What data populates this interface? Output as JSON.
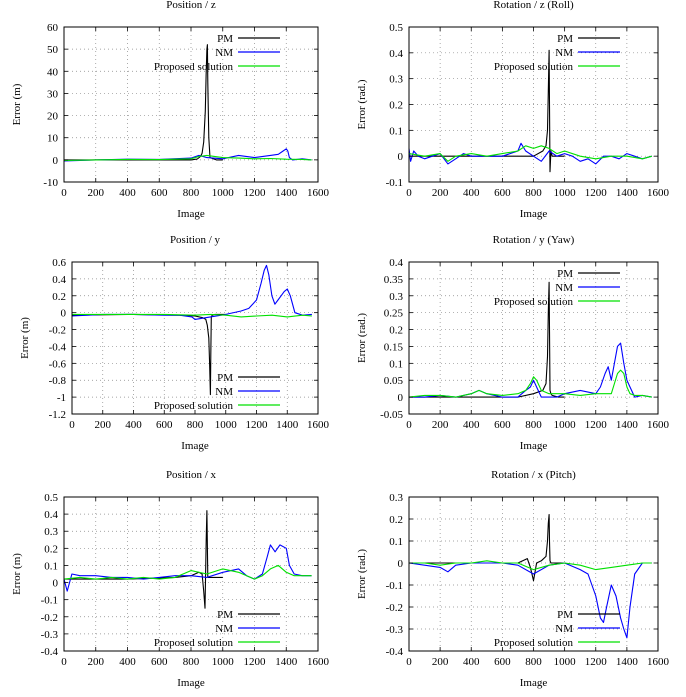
{
  "figure": {
    "layout": "3 rows x 2 columns"
  },
  "chart_data": [
    {
      "type": "line",
      "title": "Position / z",
      "xlabel": "Image",
      "ylabel": "Error (m)",
      "xlim": [
        0,
        1600
      ],
      "ylim": [
        -10,
        60
      ],
      "xticks": [
        0,
        200,
        400,
        600,
        800,
        1000,
        1200,
        1400,
        1600
      ],
      "yticks": [
        -10,
        0,
        10,
        20,
        30,
        40,
        50,
        60
      ],
      "grid": true,
      "legend_position": "top-right",
      "series": [
        {
          "name": "PM",
          "color": "#000000",
          "x": [
            0,
            400,
            800,
            840,
            860,
            870,
            880,
            890,
            895,
            900,
            903,
            906,
            912,
            920,
            960,
            1000
          ],
          "y": [
            0,
            0,
            0,
            0.4,
            1.5,
            3,
            8,
            22,
            38,
            50,
            52,
            35,
            10,
            1,
            0,
            0
          ]
        },
        {
          "name": "NM",
          "color": "#0000ff",
          "x": [
            0,
            200,
            400,
            600,
            800,
            850,
            900,
            1000,
            1100,
            1200,
            1300,
            1350,
            1380,
            1400,
            1410,
            1420,
            1440,
            1500,
            1560
          ],
          "y": [
            -0.5,
            0,
            0.3,
            0.2,
            0.8,
            2,
            1,
            0.5,
            2,
            1,
            2,
            2.5,
            4,
            5,
            4,
            1,
            0,
            0.5,
            0
          ]
        },
        {
          "name": "Proposed solution",
          "color": "#00e000",
          "x": [
            0,
            200,
            400,
            600,
            800,
            850,
            900,
            1000,
            1100,
            1200,
            1300,
            1400,
            1500,
            1560
          ],
          "y": [
            -0.3,
            0,
            0.2,
            0.1,
            0.5,
            1.5,
            2,
            1,
            0.8,
            0.5,
            0.6,
            0.3,
            0.2,
            0
          ]
        }
      ]
    },
    {
      "type": "line",
      "title": "Rotation / z (Roll)",
      "xlabel": "Image",
      "ylabel": "Error (rad.)",
      "xlim": [
        0,
        1600
      ],
      "ylim": [
        -0.1,
        0.5
      ],
      "xticks": [
        0,
        200,
        400,
        600,
        800,
        1000,
        1200,
        1400,
        1600
      ],
      "yticks": [
        -0.1,
        0,
        0.1,
        0.2,
        0.3,
        0.4,
        0.5
      ],
      "grid": true,
      "legend_position": "top-right",
      "series": [
        {
          "name": "PM",
          "color": "#000000",
          "x": [
            0,
            400,
            700,
            800,
            860,
            880,
            890,
            895,
            900,
            903,
            906,
            912,
            920,
            960,
            1000
          ],
          "y": [
            0,
            0,
            0,
            0,
            0.02,
            0.04,
            0.1,
            0.25,
            0.41,
            0.2,
            -0.06,
            0.02,
            0,
            0,
            0
          ]
        },
        {
          "name": "NM",
          "color": "#0000ff",
          "x": [
            0,
            10,
            30,
            60,
            100,
            150,
            200,
            250,
            300,
            350,
            400,
            500,
            600,
            700,
            720,
            750,
            800,
            850,
            900,
            950,
            1000,
            1050,
            1100,
            1150,
            1200,
            1250,
            1300,
            1350,
            1400,
            1450,
            1500,
            1560
          ],
          "y": [
            0.03,
            -0.02,
            0.02,
            0,
            -0.01,
            0,
            0.01,
            -0.03,
            -0.01,
            0.01,
            0,
            0,
            0,
            0.02,
            0.05,
            0.02,
            0,
            -0.02,
            0.02,
            0,
            0.01,
            0,
            -0.02,
            -0.01,
            -0.03,
            0,
            0,
            -0.01,
            0.01,
            0,
            -0.01,
            0
          ]
        },
        {
          "name": "Proposed solution",
          "color": "#00e000",
          "x": [
            0,
            100,
            200,
            250,
            300,
            400,
            500,
            600,
            700,
            750,
            800,
            850,
            900,
            950,
            1000,
            1100,
            1200,
            1300,
            1400,
            1500,
            1560
          ],
          "y": [
            0.01,
            0,
            0.01,
            -0.02,
            0,
            0.01,
            0,
            0.01,
            0.02,
            0.04,
            0.03,
            0.04,
            0.03,
            0.01,
            0.02,
            0,
            -0.01,
            0,
            0,
            -0.01,
            0
          ]
        }
      ]
    },
    {
      "type": "line",
      "title": "Position / y",
      "xlabel": "Image",
      "ylabel": "Error (m)",
      "xlim": [
        0,
        1600
      ],
      "ylim": [
        -1.2,
        0.6
      ],
      "xticks": [
        0,
        200,
        400,
        600,
        800,
        1000,
        1200,
        1400,
        1600
      ],
      "yticks": [
        -1.2,
        -1,
        -0.8,
        -0.6,
        -0.4,
        -0.2,
        0,
        0.2,
        0.4,
        0.6
      ],
      "grid": true,
      "legend_position": "bottom-right",
      "series": [
        {
          "name": "PM",
          "color": "#000000",
          "x": [
            0,
            400,
            700,
            800,
            850,
            870,
            880,
            890,
            895,
            900,
            903,
            906,
            912,
            930,
            1000
          ],
          "y": [
            -0.03,
            -0.02,
            -0.03,
            -0.04,
            -0.06,
            -0.08,
            -0.15,
            -0.3,
            -0.6,
            -0.97,
            -0.5,
            -0.05,
            -0.03,
            -0.02,
            -0.02
          ]
        },
        {
          "name": "NM",
          "color": "#0000ff",
          "x": [
            0,
            200,
            400,
            600,
            700,
            780,
            800,
            900,
            1000,
            1100,
            1150,
            1200,
            1230,
            1250,
            1265,
            1280,
            1300,
            1320,
            1340,
            1360,
            1380,
            1400,
            1420,
            1450,
            1500,
            1560
          ],
          "y": [
            -0.04,
            -0.02,
            -0.02,
            -0.03,
            -0.03,
            -0.05,
            -0.08,
            -0.05,
            -0.02,
            0.02,
            0.05,
            0.15,
            0.35,
            0.5,
            0.56,
            0.45,
            0.2,
            0.1,
            0.15,
            0.2,
            0.25,
            0.28,
            0.2,
            0,
            -0.03,
            -0.02
          ]
        },
        {
          "name": "Proposed solution",
          "color": "#00e000",
          "x": [
            0,
            200,
            400,
            600,
            800,
            900,
            1000,
            1100,
            1200,
            1300,
            1400,
            1500,
            1560
          ],
          "y": [
            -0.02,
            -0.02,
            -0.02,
            -0.02,
            -0.03,
            -0.02,
            -0.03,
            -0.05,
            -0.04,
            -0.03,
            -0.05,
            -0.03,
            -0.04
          ]
        }
      ]
    },
    {
      "type": "line",
      "title": "Rotation / y (Yaw)",
      "xlabel": "Image",
      "ylabel": "Error (rad.)",
      "xlim": [
        0,
        1600
      ],
      "ylim": [
        -0.05,
        0.4
      ],
      "xticks": [
        0,
        200,
        400,
        600,
        800,
        1000,
        1200,
        1400,
        1600
      ],
      "yticks": [
        -0.05,
        0,
        0.05,
        0.1,
        0.15,
        0.2,
        0.25,
        0.3,
        0.35,
        0.4
      ],
      "grid": true,
      "legend_position": "top-right",
      "series": [
        {
          "name": "PM",
          "color": "#000000",
          "x": [
            0,
            400,
            700,
            800,
            860,
            880,
            890,
            895,
            900,
            903,
            906,
            912,
            920,
            960,
            1000
          ],
          "y": [
            0,
            0,
            0,
            0.01,
            0.02,
            0.04,
            0.12,
            0.25,
            0.34,
            0.2,
            0.02,
            0.01,
            0.005,
            0,
            0
          ]
        },
        {
          "name": "NM",
          "color": "#0000ff",
          "x": [
            0,
            100,
            200,
            300,
            400,
            450,
            500,
            600,
            700,
            750,
            780,
            800,
            820,
            850,
            900,
            950,
            1000,
            1100,
            1200,
            1230,
            1260,
            1280,
            1300,
            1320,
            1340,
            1360,
            1380,
            1400,
            1420,
            1450,
            1500,
            1560
          ],
          "y": [
            0,
            0,
            0.005,
            0,
            0.01,
            0.02,
            0.01,
            0,
            0,
            0.02,
            0.03,
            0.05,
            0.03,
            0,
            0,
            0,
            0.01,
            0.02,
            0.01,
            0.03,
            0.07,
            0.09,
            0.05,
            0.1,
            0.15,
            0.16,
            0.1,
            0.05,
            0.03,
            0,
            0.005,
            0
          ]
        },
        {
          "name": "Proposed solution",
          "color": "#00e000",
          "x": [
            0,
            100,
            200,
            300,
            400,
            450,
            500,
            600,
            700,
            750,
            780,
            800,
            820,
            850,
            900,
            1000,
            1100,
            1200,
            1300,
            1320,
            1340,
            1360,
            1380,
            1400,
            1420,
            1450,
            1500,
            1560
          ],
          "y": [
            0,
            0.005,
            0.005,
            0,
            0.01,
            0.02,
            0.01,
            0.005,
            0.01,
            0.02,
            0.04,
            0.06,
            0.05,
            0.02,
            0.01,
            0.01,
            0.005,
            0.01,
            0.01,
            0.04,
            0.07,
            0.08,
            0.07,
            0.03,
            0.01,
            0.005,
            0.005,
            0
          ]
        }
      ]
    },
    {
      "type": "line",
      "title": "Position / x",
      "xlabel": "Image",
      "ylabel": "Error (m)",
      "xlim": [
        0,
        1600
      ],
      "ylim": [
        -0.4,
        0.5
      ],
      "xticks": [
        0,
        200,
        400,
        600,
        800,
        1000,
        1200,
        1400,
        1600
      ],
      "yticks": [
        -0.4,
        -0.3,
        -0.2,
        -0.1,
        0,
        0.1,
        0.2,
        0.3,
        0.4,
        0.5
      ],
      "grid": true,
      "legend_position": "bottom-right",
      "series": [
        {
          "name": "PM",
          "color": "#000000",
          "x": [
            0,
            400,
            700,
            800,
            850,
            870,
            880,
            888,
            892,
            896,
            900,
            903,
            906,
            912,
            930,
            1000
          ],
          "y": [
            0.02,
            0.02,
            0.03,
            0.04,
            0.06,
            0.05,
            -0.05,
            -0.15,
            0.05,
            0.25,
            0.42,
            0.2,
            0.03,
            0.03,
            0.03,
            0.03
          ]
        },
        {
          "name": "NM",
          "color": "#0000ff",
          "x": [
            0,
            20,
            50,
            100,
            200,
            300,
            400,
            500,
            600,
            700,
            800,
            900,
            1000,
            1100,
            1150,
            1200,
            1250,
            1280,
            1300,
            1330,
            1360,
            1400,
            1420,
            1450,
            1500,
            1560
          ],
          "y": [
            0.02,
            -0.05,
            0.05,
            0.04,
            0.04,
            0.03,
            0.03,
            0.02,
            0.03,
            0.04,
            0.04,
            0.03,
            0.06,
            0.08,
            0.04,
            0.02,
            0.05,
            0.15,
            0.22,
            0.18,
            0.22,
            0.2,
            0.1,
            0.05,
            0.04,
            0.04
          ]
        },
        {
          "name": "Proposed solution",
          "color": "#00e000",
          "x": [
            0,
            100,
            200,
            300,
            400,
            500,
            600,
            700,
            800,
            900,
            1000,
            1100,
            1200,
            1250,
            1300,
            1350,
            1400,
            1450,
            1500,
            1560
          ],
          "y": [
            0.02,
            0.03,
            0.02,
            0.03,
            0.02,
            0.03,
            0.02,
            0.03,
            0.07,
            0.05,
            0.08,
            0.06,
            0.02,
            0.04,
            0.08,
            0.1,
            0.06,
            0.04,
            0.04,
            0.04
          ]
        }
      ]
    },
    {
      "type": "line",
      "title": "Rotation / x (Pitch)",
      "xlabel": "Image",
      "ylabel": "Error (rad.)",
      "xlim": [
        0,
        1600
      ],
      "ylim": [
        -0.4,
        0.3
      ],
      "xticks": [
        0,
        200,
        400,
        600,
        800,
        1000,
        1200,
        1400,
        1600
      ],
      "yticks": [
        -0.4,
        -0.3,
        -0.2,
        -0.1,
        0,
        0.1,
        0.2,
        0.3
      ],
      "grid": true,
      "legend_position": "bottom-right",
      "series": [
        {
          "name": "PM",
          "color": "#000000",
          "x": [
            0,
            400,
            700,
            760,
            780,
            800,
            820,
            850,
            880,
            890,
            895,
            900,
            903,
            906,
            912,
            930,
            1000
          ],
          "y": [
            0,
            0,
            0,
            0.02,
            -0.02,
            -0.08,
            0,
            0.01,
            0.03,
            0.1,
            0.18,
            0.22,
            0.1,
            0.01,
            0,
            0,
            0
          ]
        },
        {
          "name": "NM",
          "color": "#0000ff",
          "x": [
            0,
            100,
            200,
            250,
            300,
            400,
            500,
            600,
            700,
            800,
            900,
            1000,
            1100,
            1150,
            1200,
            1230,
            1250,
            1270,
            1300,
            1330,
            1360,
            1380,
            1400,
            1420,
            1450,
            1500,
            1560
          ],
          "y": [
            0,
            -0.01,
            -0.02,
            -0.04,
            -0.01,
            0,
            0,
            0,
            -0.01,
            -0.05,
            -0.01,
            0,
            -0.03,
            -0.05,
            -0.15,
            -0.25,
            -0.27,
            -0.2,
            -0.1,
            -0.15,
            -0.25,
            -0.3,
            -0.34,
            -0.2,
            -0.05,
            0,
            0
          ]
        },
        {
          "name": "Proposed solution",
          "color": "#00e000",
          "x": [
            0,
            100,
            200,
            300,
            400,
            500,
            600,
            700,
            800,
            900,
            1000,
            1100,
            1200,
            1300,
            1400,
            1500,
            1560
          ],
          "y": [
            0,
            0,
            -0.01,
            0,
            0,
            0.01,
            0,
            0,
            -0.03,
            -0.01,
            0,
            -0.01,
            -0.03,
            -0.02,
            -0.01,
            0,
            0
          ]
        }
      ]
    }
  ]
}
